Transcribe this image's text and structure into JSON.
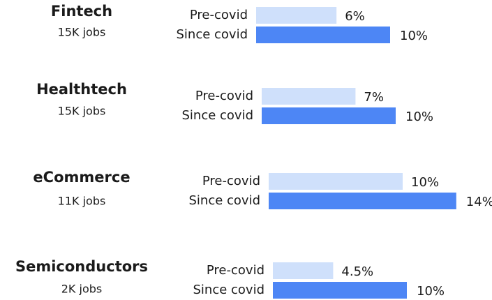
{
  "chart_data": [
    {
      "type": "bar",
      "orientation": "horizontal",
      "title": "Fintech",
      "subtitle": "15K jobs",
      "categories": [
        "Pre-covid",
        "Since covid"
      ],
      "values": [
        6,
        10
      ],
      "value_labels": [
        "6%",
        "10%"
      ],
      "colors": [
        "#cfe0fb",
        "#4d86f5"
      ]
    },
    {
      "type": "bar",
      "orientation": "horizontal",
      "title": "Healthtech",
      "subtitle": "15K jobs",
      "categories": [
        "Pre-covid",
        "Since covid"
      ],
      "values": [
        7,
        10
      ],
      "value_labels": [
        "7%",
        "10%"
      ],
      "colors": [
        "#cfe0fb",
        "#4d86f5"
      ]
    },
    {
      "type": "bar",
      "orientation": "horizontal",
      "title": "eCommerce",
      "subtitle": "11K jobs",
      "categories": [
        "Pre-covid",
        "Since covid"
      ],
      "values": [
        10,
        14
      ],
      "value_labels": [
        "10%",
        "14%"
      ],
      "colors": [
        "#cfe0fb",
        "#4d86f5"
      ]
    },
    {
      "type": "bar",
      "orientation": "horizontal",
      "title": "Semiconductors",
      "subtitle": "2K jobs",
      "categories": [
        "Pre-covid",
        "Since covid"
      ],
      "values": [
        4.5,
        10
      ],
      "value_labels": [
        "4.5%",
        "10%"
      ],
      "colors": [
        "#cfe0fb",
        "#4d86f5"
      ]
    }
  ]
}
